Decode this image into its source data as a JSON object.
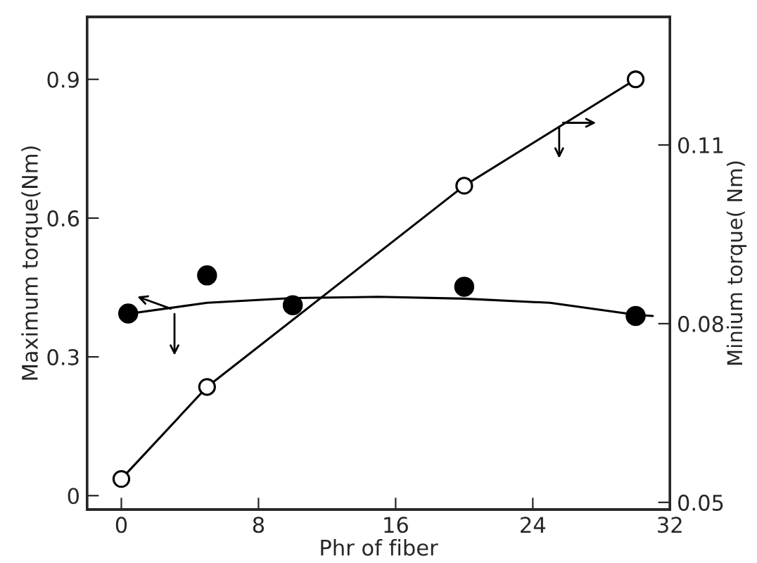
{
  "chart_data": {
    "type": "line",
    "xlabel": "Phr of fiber",
    "ylabel": "Maximum torque(Nm)",
    "y2label": "Minium torque( Nm)",
    "xlim": [
      -2,
      32
    ],
    "xticks": [
      0,
      8,
      16,
      24,
      32
    ],
    "ylim": [
      -0.03,
      1.035
    ],
    "yticks": [
      0,
      0.3,
      0.6,
      0.9
    ],
    "y2lim": [
      0.0488,
      0.1315
    ],
    "y2ticks": [
      0.05,
      0.08,
      0.11
    ],
    "grid": false,
    "legend": false,
    "series": [
      {
        "marker": "circle",
        "color": "#000000",
        "x": [
          0,
          5,
          20,
          30
        ],
        "values": [
          0.036,
          0.235,
          0.67,
          0.9
        ]
      },
      {
        "type": "scatter",
        "marker": "circle",
        "color": "#000000",
        "axis": "y2",
        "x": [
          0.4,
          5,
          10,
          20,
          30
        ],
        "values": [
          0.0817,
          0.0881,
          0.0831,
          0.0862,
          0.0813
        ]
      },
      {
        "marker": "none",
        "color": "#000000",
        "axis": "y2",
        "x": [
          0,
          5,
          10,
          15,
          20,
          25,
          30,
          31
        ],
        "values": [
          0.0815,
          0.0835,
          0.0843,
          0.0845,
          0.0842,
          0.0835,
          0.0815,
          0.0813
        ]
      }
    ]
  }
}
